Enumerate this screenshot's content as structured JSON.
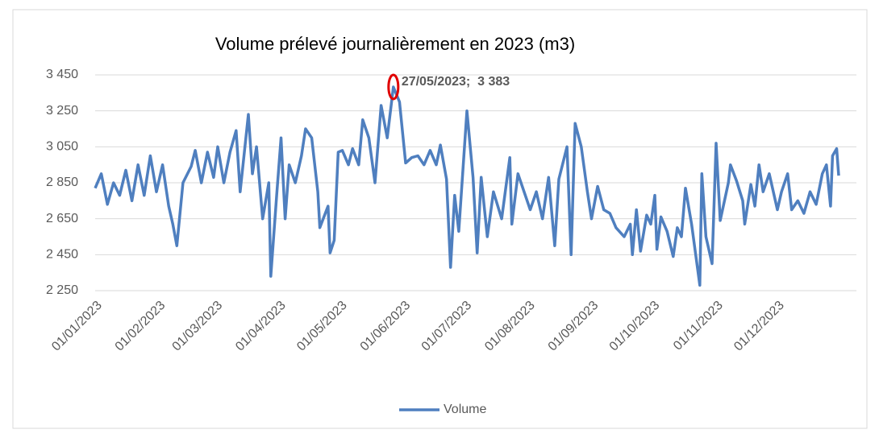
{
  "chart_data": {
    "type": "line",
    "title": "Volume prélevé journalièrement en 2023 (m3)",
    "xlim": [
      "2023-01-01",
      "2023-12-31"
    ],
    "xticks": [
      {
        "value": "2023-01-01",
        "label": "01/01/2023"
      },
      {
        "value": "2023-02-01",
        "label": "01/02/2023"
      },
      {
        "value": "2023-03-01",
        "label": "01/03/2023"
      },
      {
        "value": "2023-04-01",
        "label": "01/04/2023"
      },
      {
        "value": "2023-05-01",
        "label": "01/05/2023"
      },
      {
        "value": "2023-06-01",
        "label": "01/06/2023"
      },
      {
        "value": "2023-07-01",
        "label": "01/07/2023"
      },
      {
        "value": "2023-08-01",
        "label": "01/08/2023"
      },
      {
        "value": "2023-09-01",
        "label": "01/09/2023"
      },
      {
        "value": "2023-10-01",
        "label": "01/10/2023"
      },
      {
        "value": "2023-11-01",
        "label": "01/11/2023"
      },
      {
        "value": "2023-12-01",
        "label": "01/12/2023"
      }
    ],
    "ylim": [
      2250,
      3450
    ],
    "yticks": [
      {
        "value": 2250,
        "label": "2 250"
      },
      {
        "value": 2450,
        "label": "2 450"
      },
      {
        "value": 2650,
        "label": "2 650"
      },
      {
        "value": 2850,
        "label": "2 850"
      },
      {
        "value": 3050,
        "label": "3 050"
      },
      {
        "value": 3250,
        "label": "3 250"
      },
      {
        "value": 3450,
        "label": "3 450"
      }
    ],
    "grid": true,
    "legend": "bottom",
    "annotation": {
      "label": "27/05/2023;  3 383",
      "x": "2023-05-27",
      "value": 3383,
      "color": "#e00000"
    },
    "x": [
      "2023-01-01",
      "2023-01-04",
      "2023-01-07",
      "2023-01-10",
      "2023-01-13",
      "2023-01-16",
      "2023-01-19",
      "2023-01-22",
      "2023-01-25",
      "2023-01-28",
      "2023-01-31",
      "2023-02-03",
      "2023-02-06",
      "2023-02-08",
      "2023-02-10",
      "2023-02-13",
      "2023-02-17",
      "2023-02-19",
      "2023-02-22",
      "2023-02-25",
      "2023-02-28",
      "2023-03-02",
      "2023-03-05",
      "2023-03-08",
      "2023-03-11",
      "2023-03-13",
      "2023-03-17",
      "2023-03-19",
      "2023-03-21",
      "2023-03-24",
      "2023-03-27",
      "2023-03-28",
      "2023-03-31",
      "2023-04-02",
      "2023-04-04",
      "2023-04-06",
      "2023-04-09",
      "2023-04-12",
      "2023-04-14",
      "2023-04-17",
      "2023-04-20",
      "2023-04-21",
      "2023-04-25",
      "2023-04-26",
      "2023-04-28",
      "2023-04-30",
      "2023-05-02",
      "2023-05-05",
      "2023-05-07",
      "2023-05-10",
      "2023-05-12",
      "2023-05-15",
      "2023-05-18",
      "2023-05-21",
      "2023-05-24",
      "2023-05-27",
      "2023-05-30",
      "2023-06-02",
      "2023-06-05",
      "2023-06-08",
      "2023-06-11",
      "2023-06-14",
      "2023-06-17",
      "2023-06-19",
      "2023-06-22",
      "2023-06-24",
      "2023-06-26",
      "2023-06-28",
      "2023-07-02",
      "2023-07-05",
      "2023-07-07",
      "2023-07-09",
      "2023-07-12",
      "2023-07-15",
      "2023-07-19",
      "2023-07-23",
      "2023-07-24",
      "2023-07-27",
      "2023-07-30",
      "2023-08-02",
      "2023-08-05",
      "2023-08-08",
      "2023-08-11",
      "2023-08-14",
      "2023-08-16",
      "2023-08-20",
      "2023-08-22",
      "2023-08-24",
      "2023-08-27",
      "2023-08-30",
      "2023-09-01",
      "2023-09-04",
      "2023-09-07",
      "2023-09-10",
      "2023-09-13",
      "2023-09-17",
      "2023-09-20",
      "2023-09-21",
      "2023-09-23",
      "2023-09-25",
      "2023-09-28",
      "2023-09-30",
      "2023-10-02",
      "2023-10-03",
      "2023-10-05",
      "2023-10-08",
      "2023-10-11",
      "2023-10-13",
      "2023-10-15",
      "2023-10-17",
      "2023-10-20",
      "2023-10-24",
      "2023-10-25",
      "2023-10-27",
      "2023-10-30",
      "2023-11-01",
      "2023-11-03",
      "2023-11-07",
      "2023-11-08",
      "2023-11-11",
      "2023-11-14",
      "2023-11-15",
      "2023-11-18",
      "2023-11-20",
      "2023-11-22",
      "2023-11-24",
      "2023-11-27",
      "2023-12-01",
      "2023-12-03",
      "2023-12-06",
      "2023-12-08",
      "2023-12-11",
      "2023-12-14",
      "2023-12-17",
      "2023-12-20",
      "2023-12-23",
      "2023-12-25",
      "2023-12-27",
      "2023-12-28",
      "2023-12-30",
      "2023-12-31"
    ],
    "series": [
      {
        "name": "Volume",
        "color": "#4f7fbf",
        "values": [
          2820,
          2900,
          2730,
          2850,
          2780,
          2920,
          2750,
          2950,
          2780,
          3000,
          2800,
          2950,
          2720,
          2620,
          2500,
          2850,
          2940,
          3030,
          2850,
          3020,
          2880,
          3050,
          2850,
          3020,
          3140,
          2800,
          3230,
          2900,
          3050,
          2650,
          2850,
          2330,
          2800,
          3100,
          2650,
          2950,
          2850,
          3000,
          3150,
          3100,
          2800,
          2600,
          2720,
          2460,
          2530,
          3020,
          3030,
          2950,
          3040,
          2950,
          3200,
          3100,
          2850,
          3280,
          3100,
          3383,
          3300,
          2960,
          2990,
          3000,
          2950,
          3030,
          2950,
          3060,
          2870,
          2380,
          2780,
          2580,
          3250,
          2880,
          2460,
          2880,
          2550,
          2800,
          2650,
          2990,
          2620,
          2900,
          2800,
          2700,
          2800,
          2650,
          2880,
          2500,
          2870,
          3050,
          2450,
          3180,
          3050,
          2800,
          2650,
          2830,
          2700,
          2680,
          2600,
          2550,
          2620,
          2450,
          2700,
          2470,
          2670,
          2620,
          2780,
          2480,
          2660,
          2580,
          2440,
          2600,
          2550,
          2820,
          2620,
          2280,
          2900,
          2550,
          2400,
          3070,
          2640,
          2850,
          2950,
          2860,
          2750,
          2620,
          2840,
          2720,
          2950,
          2800,
          2900,
          2700,
          2800,
          2900,
          2700,
          2750,
          2680,
          2800,
          2730,
          2900,
          2950,
          2720,
          3000,
          3040,
          2890
        ]
      }
    ]
  }
}
